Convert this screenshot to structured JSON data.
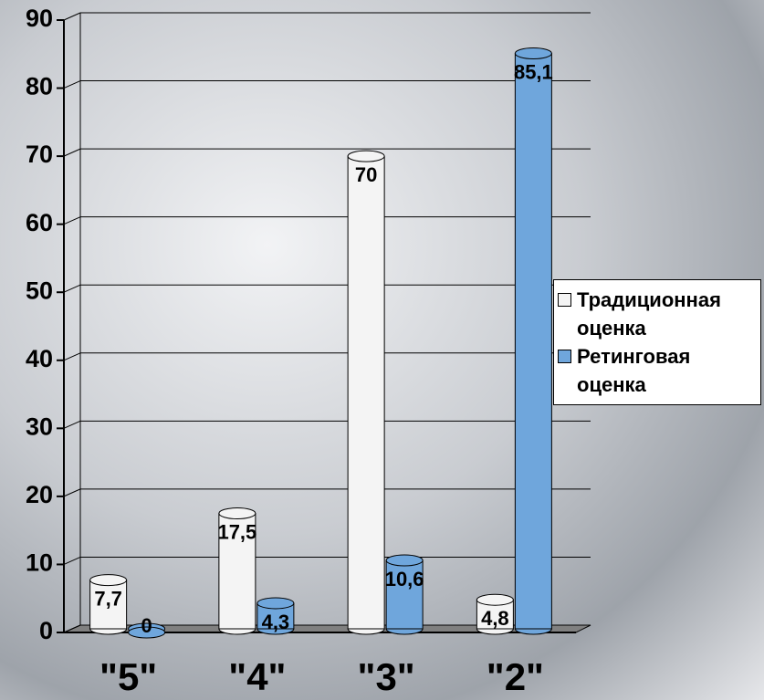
{
  "chart_data": {
    "type": "bar",
    "categories": [
      "\"5\"",
      "\"4\"",
      "\"3\"",
      "\"2\""
    ],
    "series": [
      {
        "name": "Традиционная оценка",
        "color": "#f4f4f4",
        "values": [
          7.7,
          17.5,
          70,
          4.8
        ],
        "value_labels": [
          "7,7",
          "17,5",
          "70",
          "4,8"
        ]
      },
      {
        "name": "Ретинговая оценка",
        "color": "#6fa6dc",
        "values": [
          0,
          4.3,
          10.6,
          85.1
        ],
        "value_labels": [
          "0",
          "4,3",
          "10,6",
          "85,1"
        ]
      }
    ],
    "ylim": [
      0,
      90
    ],
    "yticks": [
      0,
      10,
      20,
      30,
      40,
      50,
      60,
      70,
      80,
      90
    ],
    "grid": true,
    "legend": "right"
  }
}
